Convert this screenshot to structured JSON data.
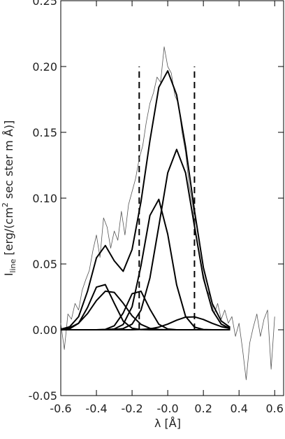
{
  "chart_data": {
    "type": "line",
    "xlabel": "λ [Å]",
    "ylabel": [
      "I",
      "line",
      " [erg/(cm",
      "2",
      " sec ster m Å)]"
    ],
    "xlim": [
      -0.6,
      0.65
    ],
    "ylim": [
      -0.05,
      0.25
    ],
    "xticks": [
      -0.6,
      -0.4,
      -0.2,
      {
        "value": 0,
        "label": "-0.0"
      },
      0.2,
      0.4,
      0.6
    ],
    "yticks": [
      -0.05,
      {
        "value": 0,
        "label": "0.00"
      },
      0.05,
      {
        "value": 0.1,
        "label": "0.10"
      },
      0.15,
      {
        "value": 0.2,
        "label": "0.20"
      },
      0.25
    ],
    "vlines": [
      {
        "x": -0.16,
        "ymin": 0,
        "ymax": 0.2
      },
      {
        "x": 0.15,
        "ymin": 0,
        "ymax": 0.2
      }
    ],
    "series": [
      {
        "color": "#555555",
        "x": [
          -0.6,
          -0.58,
          -0.56,
          -0.54,
          -0.52,
          -0.5,
          -0.48,
          -0.46,
          -0.44,
          -0.42,
          -0.4,
          -0.38,
          -0.36,
          -0.34,
          -0.32,
          -0.3,
          -0.28,
          -0.26,
          -0.24,
          -0.22,
          -0.2,
          -0.18,
          -0.16,
          -0.14,
          -0.12,
          -0.1,
          -0.08,
          -0.06,
          -0.04,
          -0.02,
          0,
          0.02,
          0.04,
          0.06,
          0.08,
          0.1,
          0.12,
          0.14,
          0.16,
          0.18,
          0.2,
          0.22,
          0.24,
          0.26,
          0.28,
          0.3,
          0.32,
          0.34,
          0.36,
          0.38,
          0.4,
          0.42,
          0.44,
          0.46,
          0.48,
          0.5,
          0.52,
          0.54,
          0.56,
          0.58,
          0.6
        ],
        "values": [
          0.005,
          -0.015,
          0.012,
          0.008,
          0.02,
          0.015,
          0.03,
          0.038,
          0.045,
          0.06,
          0.072,
          0.055,
          0.085,
          0.078,
          0.062,
          0.075,
          0.068,
          0.09,
          0.072,
          0.095,
          0.105,
          0.115,
          0.13,
          0.14,
          0.158,
          0.172,
          0.18,
          0.192,
          0.188,
          0.215,
          0.2,
          0.195,
          0.178,
          0.172,
          0.15,
          0.135,
          0.11,
          0.095,
          0.07,
          0.055,
          0.042,
          0.03,
          0.025,
          0.012,
          0.02,
          0.008,
          0.015,
          0.005,
          0.01,
          -0.005,
          0.005,
          -0.015,
          -0.038,
          -0.01,
          0.002,
          0.012,
          -0.005,
          0.008,
          0.015,
          -0.03,
          0.01
        ]
      },
      {
        "color": "#000000",
        "x": [
          -0.6,
          -0.55,
          -0.5,
          -0.45,
          -0.4,
          -0.35,
          -0.3,
          -0.25,
          -0.2,
          -0.15,
          -0.1,
          -0.05,
          0,
          0.05,
          0.1,
          0.15,
          0.2,
          0.25,
          0.3,
          0.35
        ],
        "values": [
          0.0001,
          0.0008,
          0.0049,
          0.0169,
          0.0324,
          0.0343,
          0.0202,
          0.0066,
          0.0012,
          0.0001,
          0,
          0,
          0,
          0,
          0,
          0,
          0,
          0,
          0,
          0
        ]
      },
      {
        "color": "#000000",
        "x": [
          -0.6,
          -0.55,
          -0.5,
          -0.45,
          -0.4,
          -0.35,
          -0.3,
          -0.25,
          -0.2,
          -0.15,
          -0.1,
          -0.05,
          0,
          0.05,
          0.1,
          0.15,
          0.2,
          0.25,
          0.3,
          0.35
        ],
        "values": [
          0.0003,
          0.0015,
          0.005,
          0.0123,
          0.0222,
          0.0293,
          0.0284,
          0.0202,
          0.0106,
          0.0041,
          0.0011,
          0.0002,
          0,
          0,
          0,
          0,
          0,
          0,
          0,
          0
        ]
      },
      {
        "color": "#000000",
        "x": [
          -0.6,
          -0.55,
          -0.5,
          -0.45,
          -0.4,
          -0.35,
          -0.3,
          -0.25,
          -0.2,
          -0.15,
          -0.1,
          -0.05,
          0,
          0.05,
          0.1,
          0.15,
          0.2,
          0.25,
          0.3,
          0.35
        ],
        "values": [
          0,
          0,
          0,
          0,
          0,
          0.0003,
          0.003,
          0.0127,
          0.0274,
          0.0293,
          0.0157,
          0.0042,
          0.0006,
          0,
          0,
          0,
          0,
          0,
          0,
          0
        ]
      },
      {
        "color": "#000000",
        "x": [
          -0.6,
          -0.55,
          -0.5,
          -0.45,
          -0.4,
          -0.35,
          -0.3,
          -0.25,
          -0.2,
          -0.15,
          -0.1,
          -0.05,
          0,
          0.05,
          0.1,
          0.15,
          0.2,
          0.25,
          0.3,
          0.35
        ],
        "values": [
          0,
          0,
          0,
          0,
          0,
          0,
          0.0002,
          0.0009,
          0.0043,
          0.0149,
          0.0393,
          0.0787,
          0.1192,
          0.137,
          0.1192,
          0.0787,
          0.0393,
          0.0149,
          0.0043,
          0.0009
        ]
      },
      {
        "color": "#000000",
        "x": [
          -0.6,
          -0.55,
          -0.5,
          -0.45,
          -0.4,
          -0.35,
          -0.3,
          -0.25,
          -0.2,
          -0.15,
          -0.1,
          -0.05,
          0,
          0.05,
          0.1,
          0.15,
          0.2,
          0.25,
          0.3,
          0.35
        ],
        "values": [
          0,
          0,
          0,
          0,
          0,
          0,
          0,
          0,
          0,
          0.0002,
          0.0007,
          0.002,
          0.0043,
          0.0073,
          0.0096,
          0.0098,
          0.0078,
          0.0049,
          0.0024,
          0.0009
        ]
      },
      {
        "color": "#000000",
        "x": [
          -0.6,
          -0.55,
          -0.5,
          -0.45,
          -0.4,
          -0.35,
          -0.3,
          -0.25,
          -0.2,
          -0.15,
          -0.1,
          -0.05,
          0,
          0.05,
          0.1,
          0.15,
          0.2,
          0.25,
          0.3,
          0.35
        ],
        "values": [
          0,
          0,
          0,
          0,
          0,
          0.0001,
          0.0006,
          0.004,
          0.0175,
          0.0487,
          0.0868,
          0.0991,
          0.0726,
          0.0341,
          0.0102,
          0.002,
          0.0002,
          0,
          0,
          0
        ]
      },
      {
        "color": "#000000",
        "x": [
          -0.6,
          -0.55,
          -0.5,
          -0.45,
          -0.4,
          -0.35,
          -0.3,
          -0.25,
          -0.2,
          -0.15,
          -0.1,
          -0.05,
          0,
          0.05,
          0.1,
          0.15,
          0.2,
          0.25,
          0.3,
          0.35
        ],
        "values": [
          0.0004,
          0.0023,
          0.0099,
          0.0292,
          0.0546,
          0.064,
          0.0524,
          0.0444,
          0.061,
          0.0973,
          0.1436,
          0.1842,
          0.1967,
          0.1784,
          0.139,
          0.0905,
          0.0473,
          0.0198,
          0.0067,
          0.0018
        ]
      }
    ]
  }
}
